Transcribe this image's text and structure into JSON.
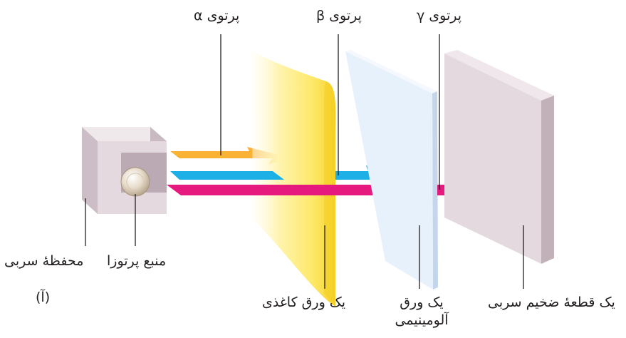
{
  "labels": {
    "alpha_ray": "پرتوی α",
    "beta_ray": "پرتوی β",
    "gamma_ray": "پرتوی γ",
    "lead_container": "محفظهٔ سربی",
    "radioactive_source": "منبع پرتوزا",
    "part_label": "(آ)",
    "paper_sheet": "یک ورق کاغذی",
    "aluminum_sheet_line1": "یک ورق",
    "aluminum_sheet_line2": "آلومینیمی",
    "lead_block": "یک قطعهٔ ضخیم سربی"
  },
  "colors": {
    "alpha": "#f9b233",
    "beta": "#1cb0e6",
    "gamma": "#e5197e",
    "paper": "#fbe35a",
    "aluminum": "#e6f1fb",
    "lead": "#e3d9df"
  }
}
